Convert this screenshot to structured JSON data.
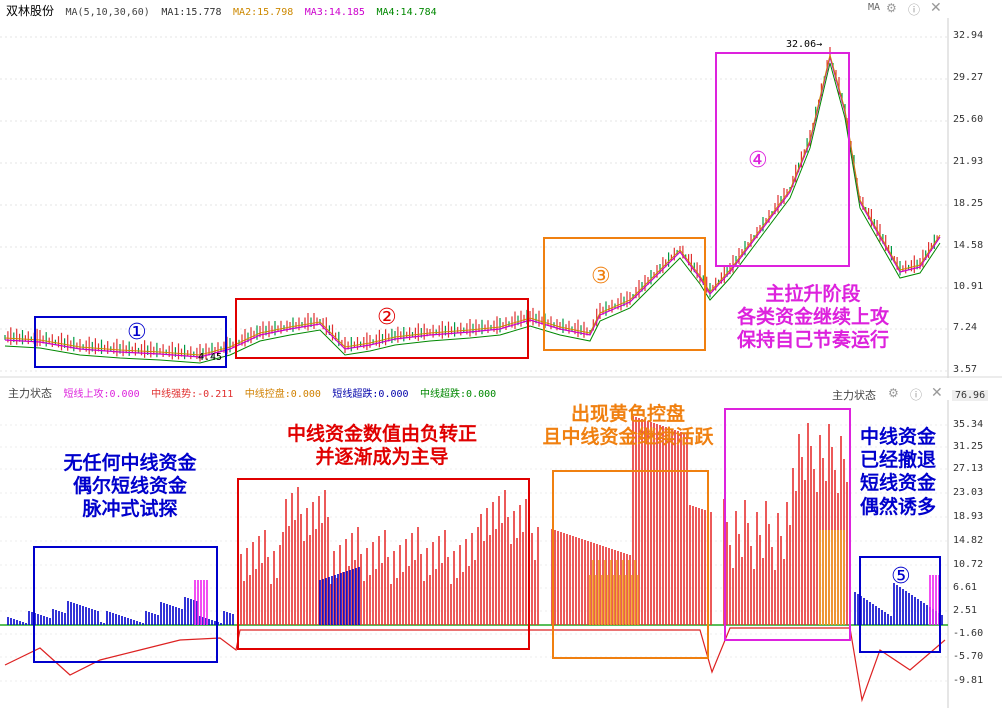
{
  "stock": {
    "name": "双林股份",
    "ma_label": "MA(5,10,30,60)",
    "ma1": "MA1:15.778",
    "ma2": "MA2:15.798",
    "ma3": "MA3:14.185",
    "ma4": "MA4:14.784",
    "ma_button": "MA",
    "high_label": "32.06→",
    "low_label": "4.45",
    "axis_labels": [
      "32.94",
      "29.27",
      "25.60",
      "21.93",
      "18.25",
      "14.58",
      "10.91",
      "7.24",
      "3.57"
    ]
  },
  "indicator": {
    "name": "主力状态",
    "name_right": "主力状态",
    "short_up": "短线上攻:0.000",
    "mid_strong": "中线强势:-0.211",
    "mid_control": "中线控盘:0.000",
    "short_jump": "短线超跌:0.000",
    "mid_jump": "中线超跌:0.000",
    "top_value": "76.96",
    "axis_labels": [
      "35.34",
      "31.25",
      "27.13",
      "23.03",
      "18.93",
      "14.82",
      "10.72",
      "6.61",
      "2.51",
      "-1.60",
      "-5.70",
      "-9.81"
    ]
  },
  "annotations": {
    "circle1": "①",
    "circle2": "②",
    "circle3": "③",
    "circle4": "④",
    "circle5": "⑤",
    "stage4_l1": "主拉升阶段",
    "stage4_l2": "各类资金继续上攻",
    "stage4_l3": "保持自己节奏运行",
    "a1_l1": "无任何中线资金",
    "a1_l2": "偶尔短线资金",
    "a1_l3": "脉冲式试探",
    "a2_l1": "中线资金数值由负转正",
    "a2_l2": "并逐渐成为主导",
    "a3_l1": "出现黄色控盘",
    "a3_l2": "且中线资金继续活跃",
    "a5_l1": "中线资金",
    "a5_l2": "已经撤退",
    "a5_l3": "短线资金",
    "a5_l4": "偶然诱多"
  },
  "colors": {
    "ma1": "#555555",
    "ma2": "#cc8800",
    "ma3": "#cc00cc",
    "ma4": "#008800",
    "up_candle": "#e03030",
    "down_candle": "#009944",
    "red_box": "#e00000",
    "blue_box": "#0000cc",
    "orange_box": "#f08010",
    "magenta_box": "#dd22dd"
  }
}
